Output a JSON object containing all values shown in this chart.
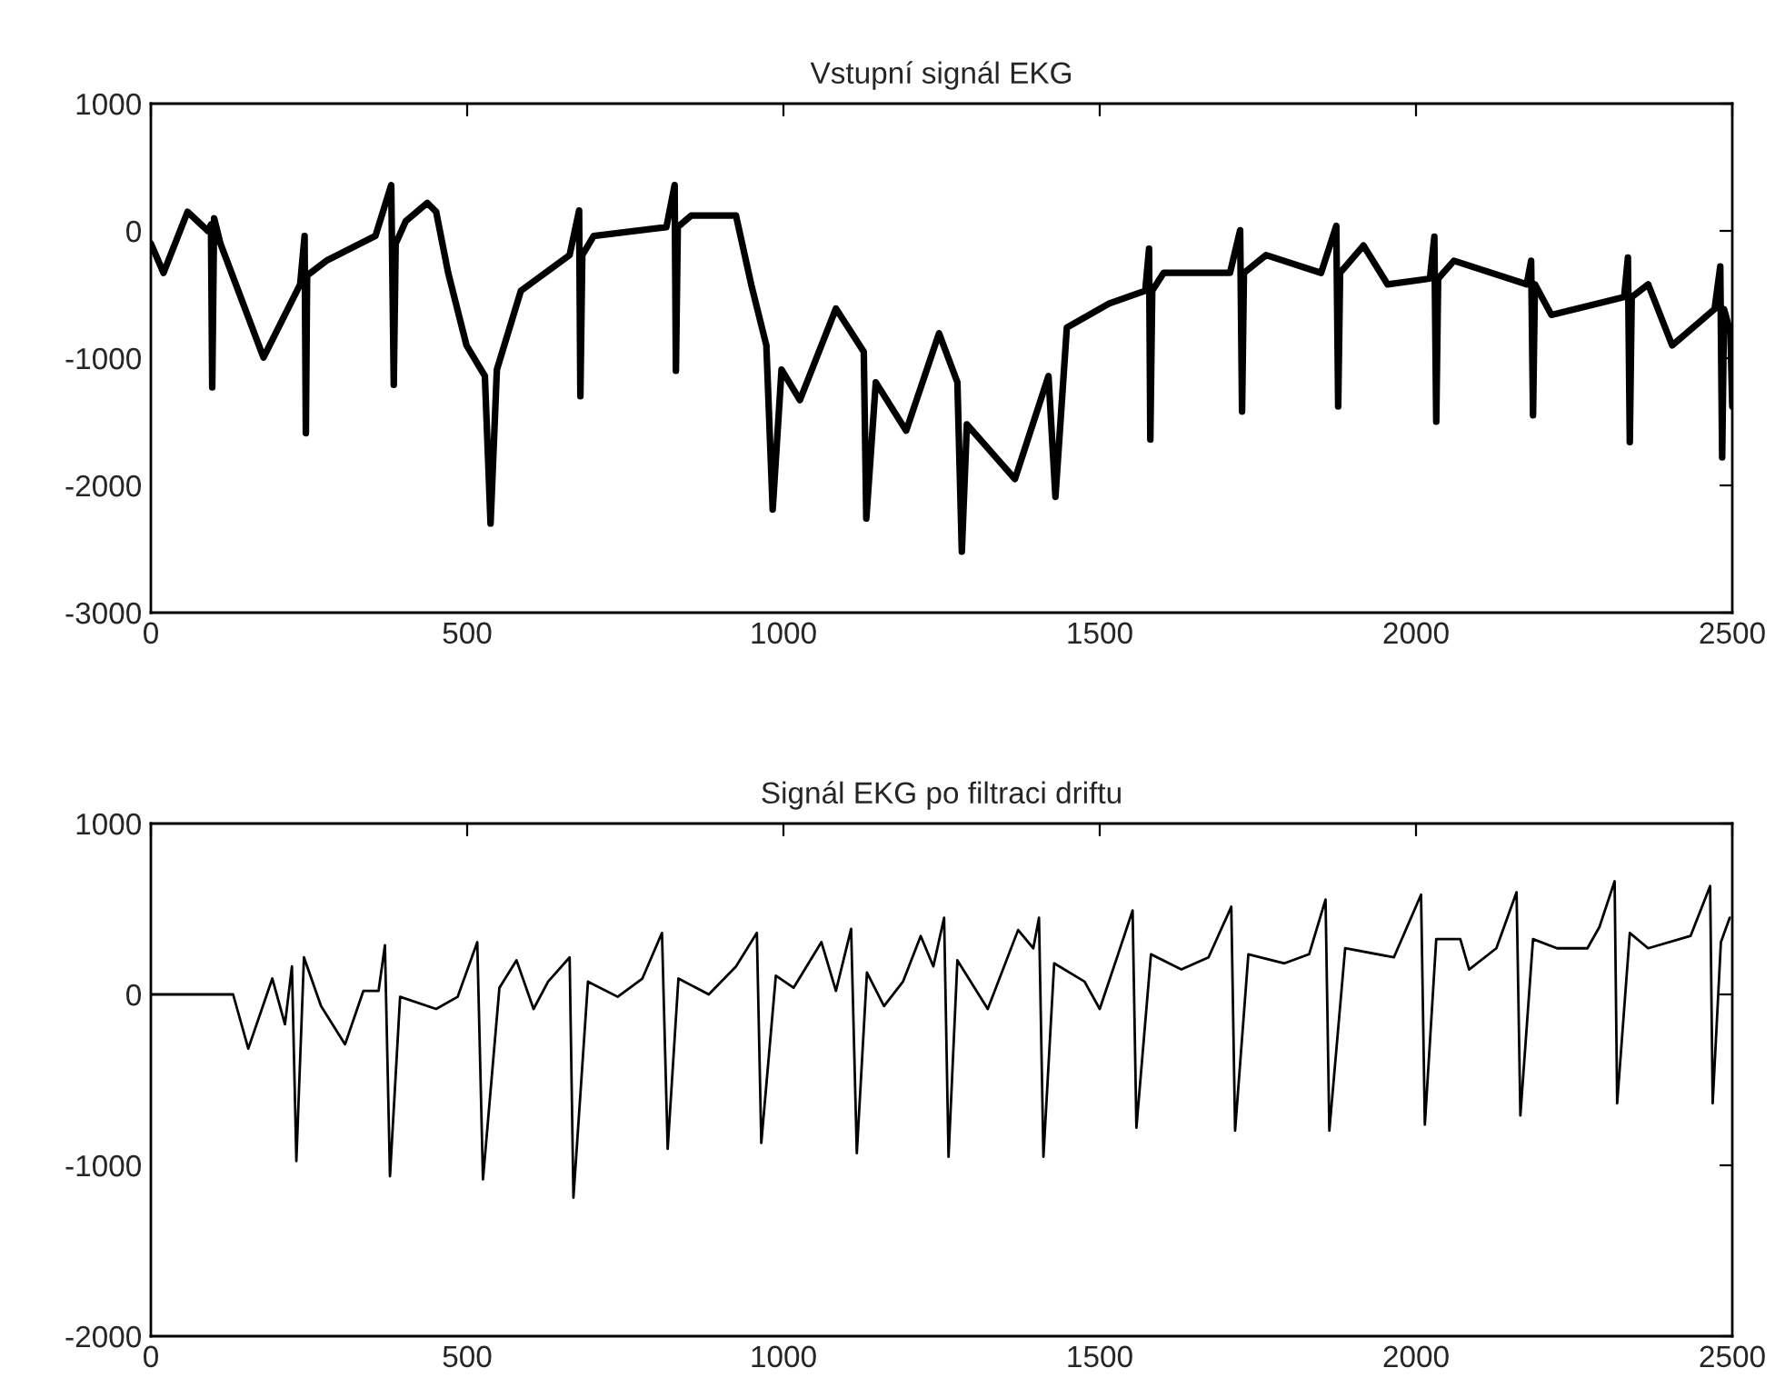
{
  "chart_data": [
    {
      "type": "line",
      "title": "Vstupní signál EKG",
      "xlim": [
        0,
        2500
      ],
      "ylim": [
        -3000,
        1000
      ],
      "xticks": [
        0,
        500,
        1000,
        1500,
        2000,
        2500
      ],
      "yticks": [
        -3000,
        -2000,
        -1000,
        0,
        1000
      ],
      "grid": false,
      "legend": false,
      "series": [
        {
          "color": "#000000",
          "x": [
            0,
            20,
            58,
            90,
            95,
            97,
            100,
            110,
            178,
            236,
            243,
            245,
            247,
            279,
            355,
            380,
            384,
            387,
            403,
            437,
            451,
            470,
            499,
            528,
            537,
            547,
            585,
            662,
            677,
            679,
            682,
            700,
            815,
            828,
            830,
            833,
            854,
            925,
            949,
            973,
            983,
            997,
            1026,
            1083,
            1127,
            1131,
            1146,
            1194,
            1246,
            1275,
            1282,
            1290,
            1366,
            1419,
            1430,
            1448,
            1515,
            1572,
            1578,
            1580,
            1583,
            1601,
            1706,
            1722,
            1725,
            1728,
            1763,
            1850,
            1874,
            1877,
            1880,
            1917,
            1955,
            2022,
            2029,
            2032,
            2035,
            2060,
            2175,
            2182,
            2185,
            2188,
            2214,
            2329,
            2335,
            2338,
            2341,
            2367,
            2405,
            2472,
            2481,
            2484,
            2487,
            2497,
            2500
          ],
          "values": [
            -100,
            -330,
            150,
            0,
            50,
            -1230,
            100,
            -100,
            -995,
            -420,
            -40,
            -1590,
            -350,
            -230,
            -40,
            360,
            -1210,
            -100,
            76,
            220,
            150,
            -330,
            -900,
            -1140,
            -2300,
            -1090,
            -470,
            -190,
            160,
            -1300,
            -190,
            -40,
            30,
            360,
            -1100,
            30,
            120,
            120,
            -420,
            -900,
            -2190,
            -1090,
            -1330,
            -610,
            -950,
            -2260,
            -1190,
            -1570,
            -805,
            -1190,
            -2520,
            -1520,
            -1950,
            -1140,
            -2090,
            -760,
            -570,
            -470,
            -140,
            -1640,
            -470,
            -330,
            -330,
            5,
            -1420,
            -330,
            -190,
            -330,
            40,
            -1380,
            -330,
            -115,
            -420,
            -375,
            -45,
            -1500,
            -375,
            -235,
            -420,
            -235,
            -1450,
            -420,
            -660,
            -520,
            -210,
            -1660,
            -520,
            -420,
            -900,
            -615,
            -280,
            -1780,
            -615,
            -800,
            -1380
          ]
        }
      ]
    },
    {
      "type": "line",
      "title": "Signál EKG po filtraci driftu",
      "xlim": [
        0,
        2500
      ],
      "ylim": [
        -2000,
        1000
      ],
      "xticks": [
        0,
        500,
        1000,
        1500,
        2000,
        2500
      ],
      "yticks": [
        -2000,
        -1000,
        0,
        1000
      ],
      "grid": false,
      "legend": false,
      "series": [
        {
          "color": "#000000",
          "x": [
            0,
            116,
            130,
            154,
            192,
            212,
            223,
            230,
            242,
            269,
            307,
            336,
            360,
            370,
            378,
            394,
            451,
            485,
            516,
            525,
            551,
            578,
            605,
            628,
            662,
            668,
            691,
            738,
            777,
            808,
            817,
            834,
            882,
            925,
            958,
            965,
            988,
            1016,
            1060,
            1083,
            1107,
            1116,
            1132,
            1159,
            1189,
            1217,
            1237,
            1254,
            1261,
            1275,
            1323,
            1371,
            1395,
            1404,
            1411,
            1428,
            1476,
            1500,
            1529,
            1552,
            1558,
            1581,
            1629,
            1672,
            1708,
            1714,
            1735,
            1792,
            1831,
            1857,
            1863,
            1888,
            1965,
            2008,
            2014,
            2032,
            2070,
            2084,
            2127,
            2159,
            2165,
            2185,
            2223,
            2271,
            2290,
            2314,
            2318,
            2338,
            2367,
            2434,
            2465,
            2469,
            2482,
            2496
          ],
          "values": [
            0,
            0,
            0,
            -317,
            93,
            -175,
            164,
            -975,
            217,
            -68,
            -292,
            21,
            21,
            288,
            -1064,
            -14,
            -85,
            -14,
            306,
            -1082,
            39,
            200,
            -85,
            75,
            217,
            -1189,
            75,
            -14,
            93,
            360,
            -904,
            93,
            0,
            164,
            360,
            -869,
            110,
            39,
            306,
            21,
            384,
            -929,
            128,
            -68,
            75,
            342,
            164,
            449,
            -950,
            200,
            -85,
            377,
            270,
            449,
            -950,
            182,
            75,
            -85,
            235,
            491,
            -780,
            235,
            146,
            217,
            513,
            -797,
            235,
            182,
            235,
            555,
            -797,
            270,
            217,
            584,
            -762,
            324,
            324,
            146,
            270,
            598,
            -708,
            324,
            270,
            270,
            395,
            662,
            -637,
            360,
            270,
            342,
            634,
            -637,
            306,
            449
          ]
        }
      ]
    }
  ]
}
